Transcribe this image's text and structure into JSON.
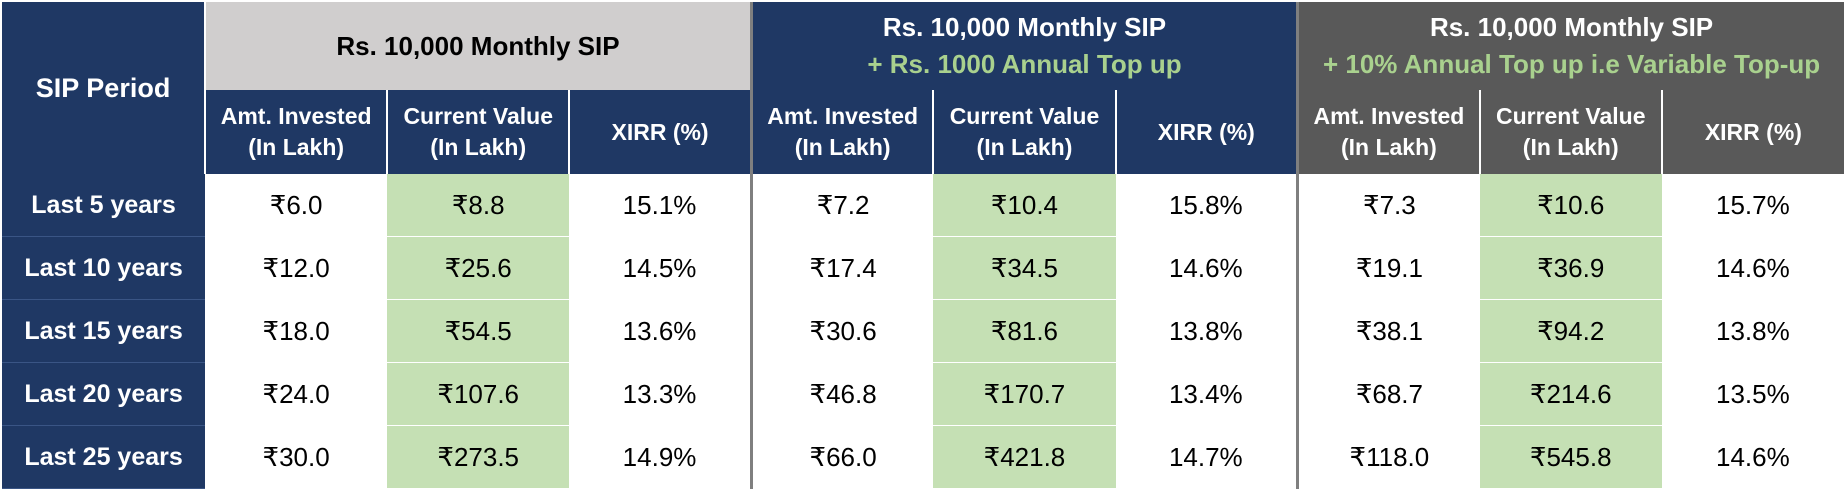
{
  "header": {
    "period_label": "SIP Period",
    "groups": [
      {
        "title": "Rs. 10,000 Monthly SIP",
        "subtitle": ""
      },
      {
        "title": "Rs. 10,000 Monthly SIP",
        "subtitle": "+ Rs. 1000 Annual Top up"
      },
      {
        "title": "Rs. 10,000 Monthly SIP",
        "subtitle": "+ 10% Annual Top up i.e Variable Top-up"
      }
    ],
    "columns": [
      {
        "line1": "Amt. Invested",
        "line2": "(In Lakh)"
      },
      {
        "line1": "Current Value",
        "line2": "(In Lakh)"
      },
      {
        "line1": "XIRR (%)",
        "line2": ""
      }
    ]
  },
  "rows": [
    {
      "period": "Last 5 years",
      "g1": [
        "₹6.0",
        "₹8.8",
        "15.1%"
      ],
      "g2": [
        "₹7.2",
        "₹10.4",
        "15.8%"
      ],
      "g3": [
        "₹7.3",
        "₹10.6",
        "15.7%"
      ]
    },
    {
      "period": "Last 10 years",
      "g1": [
        "₹12.0",
        "₹25.6",
        "14.5%"
      ],
      "g2": [
        "₹17.4",
        "₹34.5",
        "14.6%"
      ],
      "g3": [
        "₹19.1",
        "₹36.9",
        "14.6%"
      ]
    },
    {
      "period": "Last 15 years",
      "g1": [
        "₹18.0",
        "₹54.5",
        "13.6%"
      ],
      "g2": [
        "₹30.6",
        "₹81.6",
        "13.8%"
      ],
      "g3": [
        "₹38.1",
        "₹94.2",
        "13.8%"
      ]
    },
    {
      "period": "Last 20 years",
      "g1": [
        "₹24.0",
        "₹107.6",
        "13.3%"
      ],
      "g2": [
        "₹46.8",
        "₹170.7",
        "13.4%"
      ],
      "g3": [
        "₹68.7",
        "₹214.6",
        "13.5%"
      ]
    },
    {
      "period": "Last 25 years",
      "g1": [
        "₹30.0",
        "₹273.5",
        "14.9%"
      ],
      "g2": [
        "₹66.0",
        "₹421.8",
        "14.7%"
      ],
      "g3": [
        "₹118.0",
        "₹545.8",
        "14.6%"
      ]
    }
  ],
  "colors": {
    "navy": "#1f3864",
    "light_gray": "#d0cece",
    "dark_gray": "#595959",
    "green_highlight": "#c5e0b4",
    "subtitle_green": "#a9d18e"
  }
}
